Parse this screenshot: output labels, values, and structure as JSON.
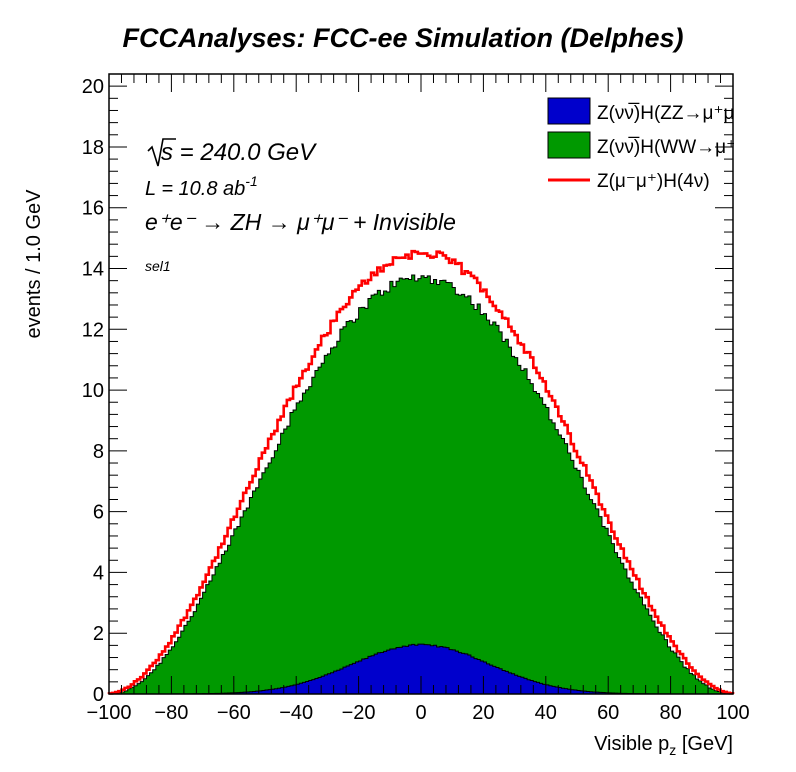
{
  "chart_data": {
    "type": "histogram",
    "title": "FCCAnalyses: FCC-ee Simulation (Delphes)",
    "xlabel": "Visible p",
    "xlabel_sub": "z",
    "xlabel_unit": " [GeV]",
    "ylabel": "events / 1.0 GeV",
    "xlim": [
      -100,
      100
    ],
    "ylim": [
      0,
      20.4
    ],
    "x_ticks": [
      -100,
      -80,
      -60,
      -40,
      -20,
      0,
      20,
      40,
      60,
      80,
      100
    ],
    "x_tick_labels": [
      "−100",
      "−80",
      "−60",
      "−40",
      "−20",
      "0",
      "20",
      "40",
      "60",
      "80",
      "100"
    ],
    "y_ticks": [
      0,
      2,
      4,
      6,
      8,
      10,
      12,
      14,
      16,
      18,
      20
    ],
    "y_tick_labels": [
      "0",
      "2",
      "4",
      "6",
      "8",
      "10",
      "12",
      "14",
      "16",
      "18",
      "20"
    ],
    "bin_width": 1.0,
    "grid": false,
    "legend_position": "top-right",
    "annotations": {
      "sqrt_s": "s",
      "energy": " = 240.0 GeV",
      "lumi_prefix": "L = 10.8 ab",
      "lumi_exp": "-1",
      "process": "e⁺e⁻ → ZH → μ⁺μ⁻ + Invisible",
      "selection": "sel1"
    },
    "series": [
      {
        "name": "Z(νν̅)H(ZZ→μ⁺μ⁻νν̅)",
        "style": "stacked-fill",
        "color": "#0000cc",
        "profile": "gaussian",
        "peak_x": 0,
        "peak_value": 1.62,
        "sigma": 22,
        "points": [
          [
            -100,
            0.0
          ],
          [
            -80,
            0.02
          ],
          [
            -60,
            0.08
          ],
          [
            -40,
            0.3
          ],
          [
            -20,
            1.05
          ],
          [
            -10,
            1.45
          ],
          [
            0,
            1.62
          ],
          [
            10,
            1.45
          ],
          [
            20,
            1.05
          ],
          [
            40,
            0.3
          ],
          [
            60,
            0.08
          ],
          [
            80,
            0.02
          ],
          [
            100,
            0.0
          ]
        ]
      },
      {
        "name": "Z(νν̅)H(WW→μ⁺νμ⁻ν̅)",
        "style": "stacked-fill",
        "color": "#009900",
        "profile": "stacked-total",
        "peak_x": 0,
        "peak_value": 13.7,
        "sigma": 35,
        "points": [
          [
            -100,
            0.0
          ],
          [
            -90,
            0.05
          ],
          [
            -80,
            0.55
          ],
          [
            -70,
            1.5
          ],
          [
            -60,
            3.0
          ],
          [
            -50,
            4.9
          ],
          [
            -40,
            7.3
          ],
          [
            -30,
            9.8
          ],
          [
            -20,
            11.8
          ],
          [
            -10,
            13.2
          ],
          [
            0,
            13.7
          ],
          [
            10,
            13.2
          ],
          [
            20,
            11.8
          ],
          [
            30,
            9.8
          ],
          [
            40,
            7.3
          ],
          [
            50,
            4.9
          ],
          [
            60,
            3.0
          ],
          [
            70,
            1.5
          ],
          [
            80,
            0.55
          ],
          [
            90,
            0.05
          ],
          [
            100,
            0.0
          ]
        ]
      },
      {
        "name": "Z(μ⁻μ⁺)H(4ν)",
        "style": "step-line",
        "color": "#ff0000",
        "profile": "step-total",
        "peak_x": 0,
        "peak_value": 14.5,
        "sigma": 36,
        "points": [
          [
            -100,
            0.0
          ],
          [
            -90,
            0.05
          ],
          [
            -80,
            0.6
          ],
          [
            -70,
            1.6
          ],
          [
            -60,
            3.2
          ],
          [
            -50,
            5.2
          ],
          [
            -40,
            7.8
          ],
          [
            -30,
            10.6
          ],
          [
            -20,
            12.7
          ],
          [
            -10,
            14.1
          ],
          [
            0,
            14.5
          ],
          [
            10,
            14.1
          ],
          [
            20,
            12.7
          ],
          [
            30,
            10.6
          ],
          [
            40,
            7.8
          ],
          [
            50,
            5.2
          ],
          [
            60,
            3.2
          ],
          [
            70,
            1.6
          ],
          [
            80,
            0.6
          ],
          [
            90,
            0.05
          ],
          [
            100,
            0.0
          ]
        ]
      }
    ]
  }
}
